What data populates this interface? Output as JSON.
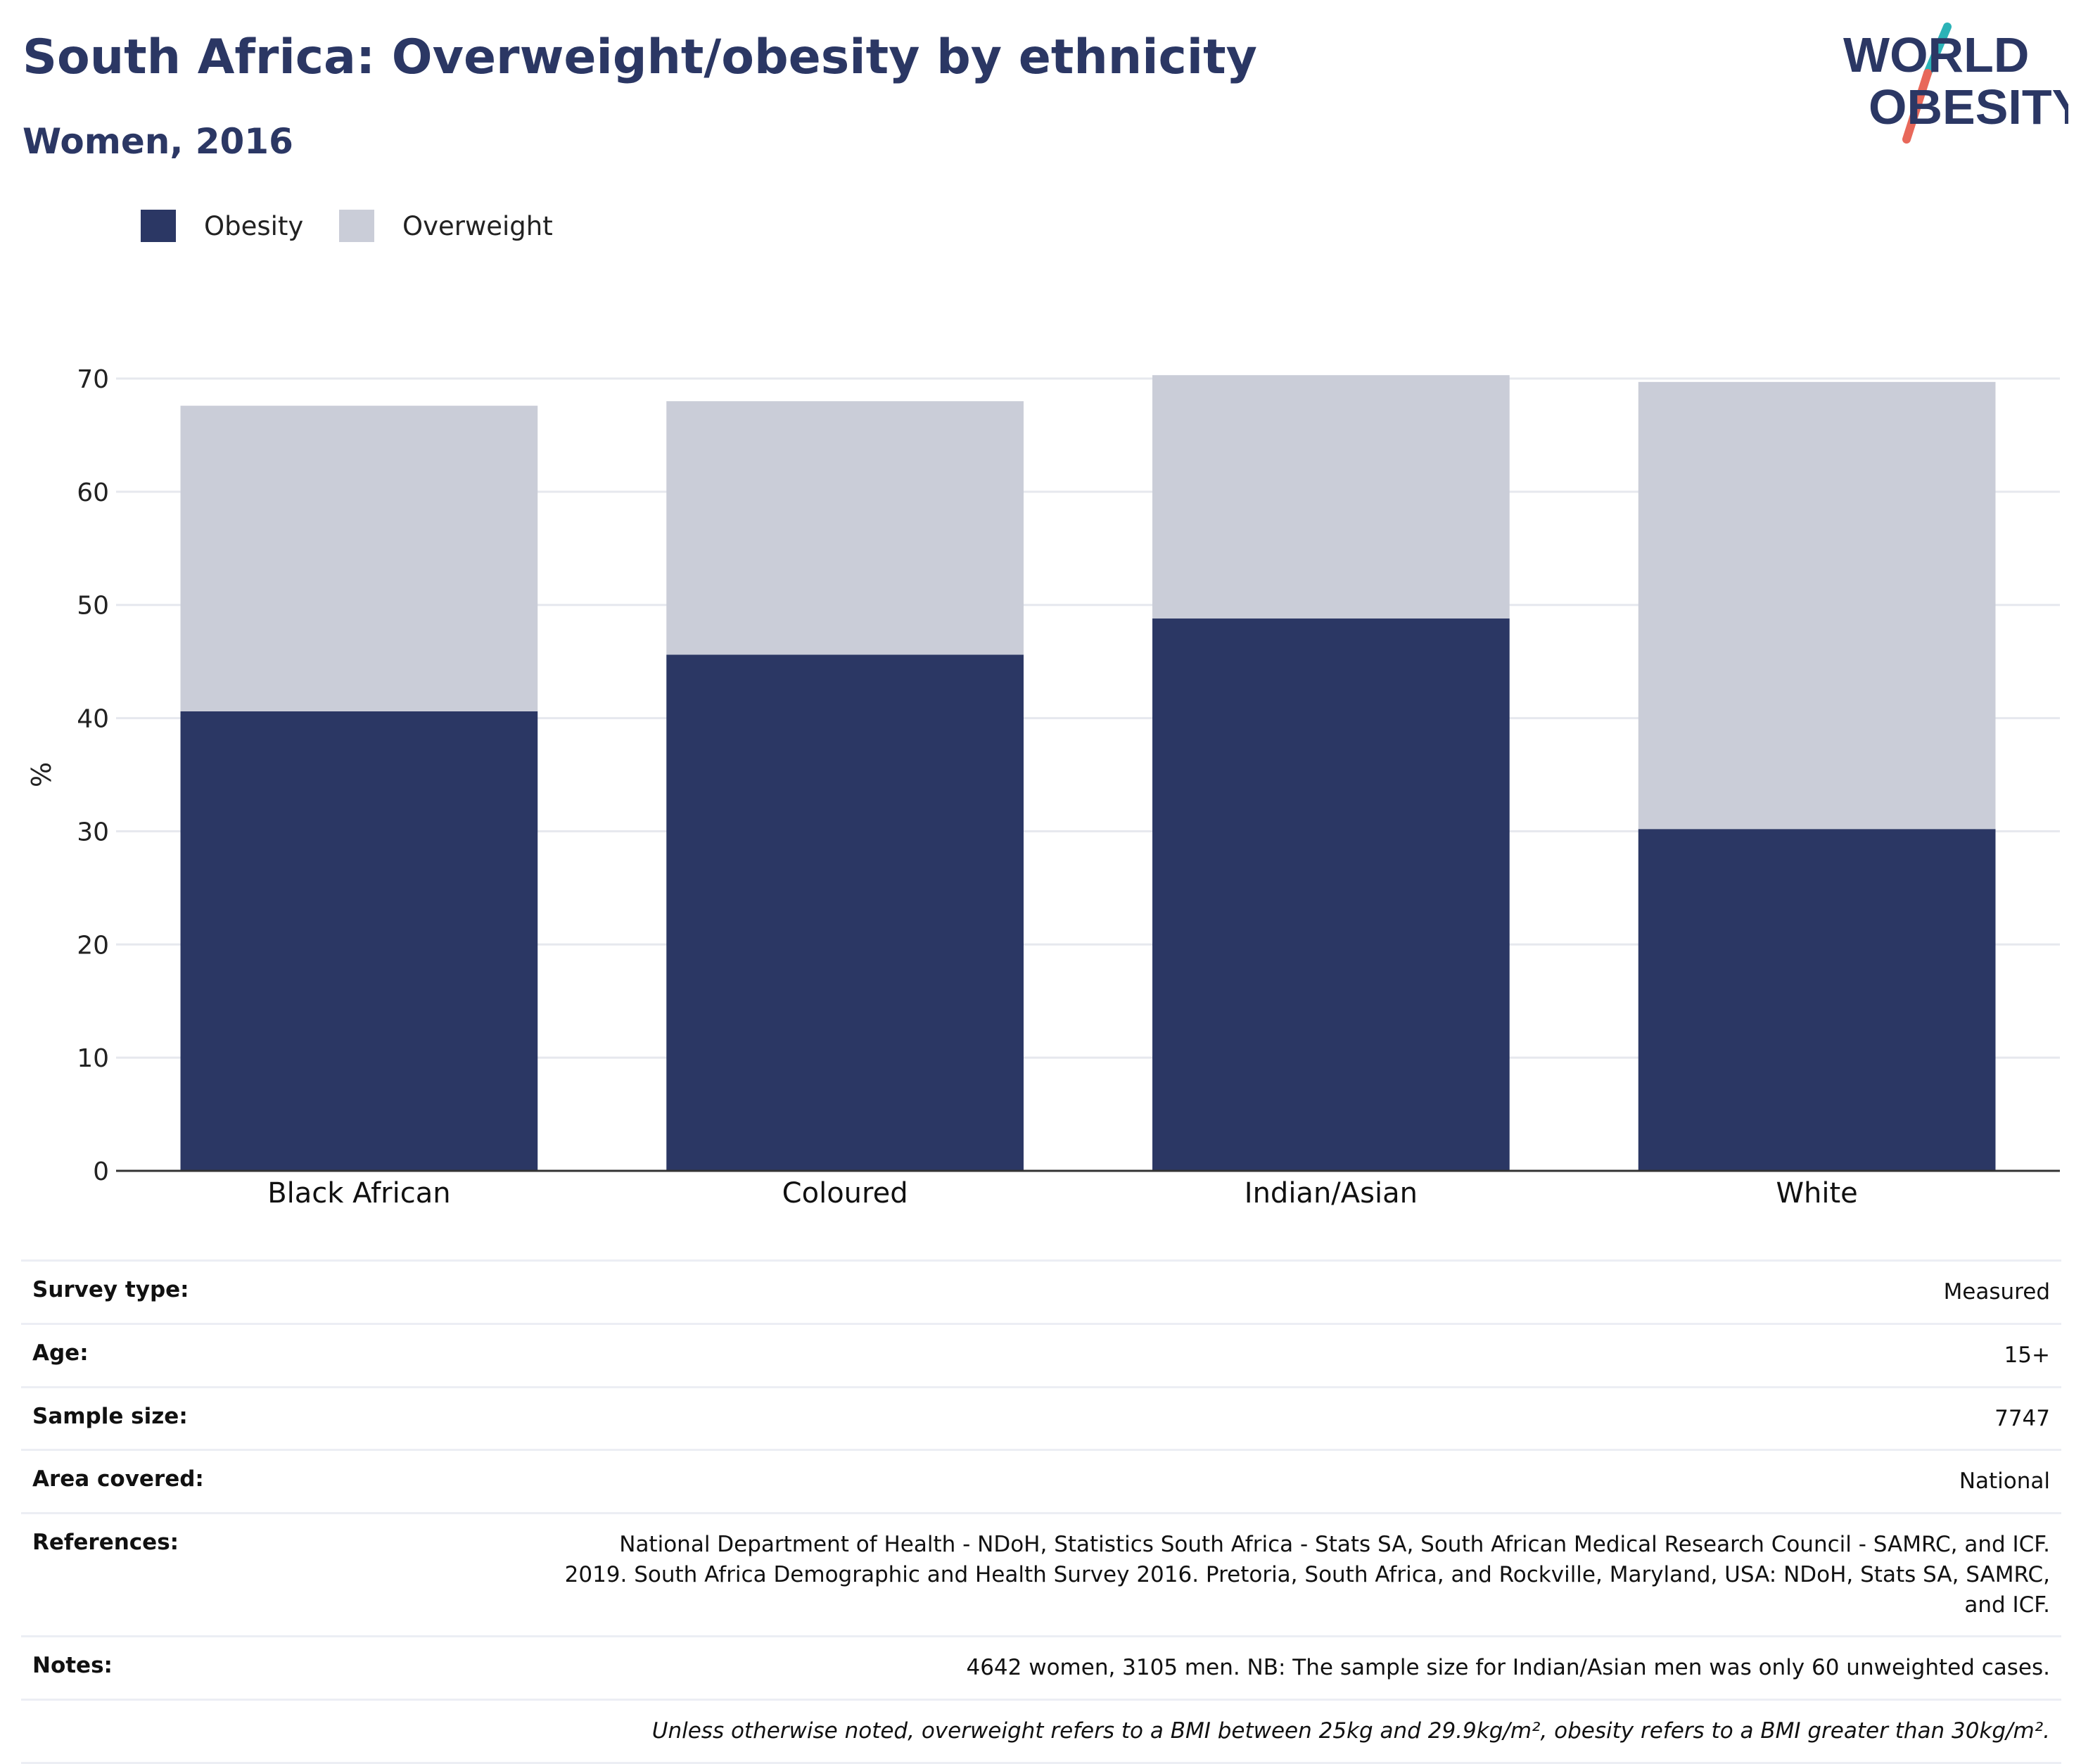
{
  "header": {
    "title": "South Africa: Overweight/obesity by ethnicity",
    "subtitle": "Women, 2016"
  },
  "logo": {
    "line1": "WORLD",
    "line2": "OBESITY",
    "colors": {
      "text": "#2b3764",
      "slash_teal": "#2bb3b7",
      "slash_red": "#e8685a"
    }
  },
  "legend": [
    {
      "label": "Obesity",
      "color": "#2b3764"
    },
    {
      "label": "Overweight",
      "color": "#cacdd8"
    }
  ],
  "chart_data": {
    "type": "bar",
    "stacked": true,
    "categories": [
      "Black African",
      "Coloured",
      "Indian/Asian",
      "White"
    ],
    "series": [
      {
        "name": "Obesity",
        "color": "#2b3764",
        "values": [
          40.6,
          45.6,
          48.8,
          30.2
        ]
      },
      {
        "name": "Overweight",
        "color": "#cacdd8",
        "values": [
          27.0,
          22.4,
          21.5,
          39.5
        ]
      }
    ],
    "ylabel": "%",
    "xlabel": "",
    "ylim": [
      0,
      70
    ],
    "yticks": [
      0,
      10,
      20,
      30,
      40,
      50,
      60,
      70
    ],
    "grid": true,
    "legend_position": "top-left"
  },
  "meta": {
    "rows": [
      {
        "key": "Survey type:",
        "value": "Measured"
      },
      {
        "key": "Age:",
        "value": "15+"
      },
      {
        "key": "Sample size:",
        "value": "7747"
      },
      {
        "key": "Area covered:",
        "value": "National"
      },
      {
        "key": "References:",
        "value": "National Department of Health - NDoH, Statistics South Africa - Stats SA, South African Medical Research Council - SAMRC, and ICF. 2019. South Africa Demographic and Health Survey 2016. Pretoria, South Africa, and Rockville, Maryland, USA: NDoH, Stats SA, SAMRC, and ICF."
      },
      {
        "key": "Notes:",
        "value": "4642 women, 3105 men. NB: The sample size for Indian/Asian men was only 60 unweighted cases."
      }
    ],
    "footnote": "Unless otherwise noted, overweight refers to a BMI between 25kg and 29.9kg/m², obesity refers to a BMI greater than 30kg/m²."
  }
}
